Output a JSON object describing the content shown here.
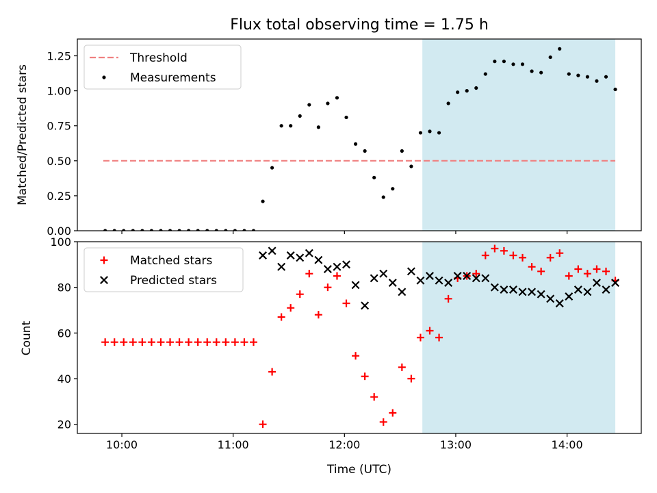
{
  "title": "Flux total observing time = 1.75 h",
  "colors": {
    "threshold": "#f08080",
    "measurement": "#000000",
    "matched": "#ff0000",
    "predicted": "#000000",
    "shade": "#add8e6"
  },
  "chart_data": [
    {
      "type": "scatter",
      "ylabel": "Matched/Predicted stars",
      "ylim": [
        0,
        1.37
      ],
      "xlim": [
        "09:36",
        "14:40"
      ],
      "yticks": [
        0.0,
        0.25,
        0.5,
        0.75,
        1.0,
        1.25
      ],
      "ytick_labels": [
        "0.00",
        "0.25",
        "0.50",
        "0.75",
        "1.00",
        "1.25"
      ],
      "legend": {
        "position": "top-left",
        "entries": [
          "Threshold",
          "Measurements"
        ]
      },
      "shaded_region": {
        "x_start": "12:42",
        "x_end": "14:26"
      },
      "threshold": {
        "name": "Threshold",
        "y": 0.5,
        "x_start": "09:50",
        "x_end": "14:26",
        "style": "dashed"
      },
      "series": [
        {
          "name": "Measurements",
          "x": [
            "09:51",
            "09:56",
            "10:01",
            "10:06",
            "10:11",
            "10:16",
            "10:21",
            "10:26",
            "10:31",
            "10:36",
            "10:41",
            "10:46",
            "10:51",
            "10:56",
            "11:01",
            "11:06",
            "11:11",
            "11:16",
            "11:21",
            "11:26",
            "11:31",
            "11:36",
            "11:41",
            "11:46",
            "11:51",
            "11:56",
            "12:01",
            "12:06",
            "12:11",
            "12:16",
            "12:21",
            "12:26",
            "12:31",
            "12:36",
            "12:41",
            "12:46",
            "12:51",
            "12:56",
            "13:01",
            "13:06",
            "13:11",
            "13:16",
            "13:21",
            "13:26",
            "13:31",
            "13:36",
            "13:41",
            "13:46",
            "13:51",
            "13:56",
            "14:01",
            "14:06",
            "14:11",
            "14:16",
            "14:21",
            "14:26"
          ],
          "y": [
            0,
            0,
            0,
            0,
            0,
            0,
            0,
            0,
            0,
            0,
            0,
            0,
            0,
            0,
            0,
            0,
            0,
            0.21,
            0.45,
            0.75,
            0.75,
            0.82,
            0.9,
            0.74,
            0.91,
            0.95,
            0.81,
            0.62,
            0.57,
            0.38,
            0.24,
            0.3,
            0.57,
            0.46,
            0.7,
            0.71,
            0.7,
            0.91,
            0.99,
            1.0,
            1.02,
            1.12,
            1.21,
            1.21,
            1.19,
            1.19,
            1.14,
            1.13,
            1.24,
            1.3,
            1.12,
            1.11,
            1.1,
            1.07,
            1.1,
            1.01
          ]
        }
      ]
    },
    {
      "type": "scatter",
      "ylabel": "Count",
      "xlabel": "Time (UTC)",
      "ylim": [
        16,
        100
      ],
      "xlim": [
        "09:36",
        "14:40"
      ],
      "yticks": [
        20,
        40,
        60,
        80,
        100
      ],
      "ytick_labels": [
        "20",
        "40",
        "60",
        "80",
        "100"
      ],
      "xticks": [
        "10:00",
        "11:00",
        "12:00",
        "13:00",
        "14:00"
      ],
      "legend": {
        "position": "top-left",
        "entries": [
          "Matched stars",
          "Predicted stars"
        ]
      },
      "shaded_region": {
        "x_start": "12:42",
        "x_end": "14:26"
      },
      "series": [
        {
          "name": "Matched stars",
          "marker": "plus",
          "x": [
            "09:51",
            "09:56",
            "10:01",
            "10:06",
            "10:11",
            "10:16",
            "10:21",
            "10:26",
            "10:31",
            "10:36",
            "10:41",
            "10:46",
            "10:51",
            "10:56",
            "11:01",
            "11:06",
            "11:11",
            "11:16",
            "11:21",
            "11:26",
            "11:31",
            "11:36",
            "11:41",
            "11:46",
            "11:51",
            "11:56",
            "12:01",
            "12:06",
            "12:11",
            "12:16",
            "12:21",
            "12:26",
            "12:31",
            "12:36",
            "12:41",
            "12:46",
            "12:51",
            "12:56",
            "13:01",
            "13:06",
            "13:11",
            "13:16",
            "13:21",
            "13:26",
            "13:31",
            "13:36",
            "13:41",
            "13:46",
            "13:51",
            "13:56",
            "14:01",
            "14:06",
            "14:11",
            "14:16",
            "14:21",
            "14:26"
          ],
          "y": [
            56,
            56,
            56,
            56,
            56,
            56,
            56,
            56,
            56,
            56,
            56,
            56,
            56,
            56,
            56,
            56,
            56,
            20,
            43,
            67,
            71,
            77,
            86,
            68,
            80,
            85,
            73,
            50,
            41,
            32,
            21,
            25,
            45,
            40,
            58,
            61,
            58,
            75,
            84,
            85,
            86,
            94,
            97,
            96,
            94,
            93,
            89,
            87,
            93,
            95,
            85,
            88,
            86,
            88,
            87,
            83
          ]
        },
        {
          "name": "Predicted stars",
          "marker": "x",
          "x": [
            "11:16",
            "11:21",
            "11:26",
            "11:31",
            "11:36",
            "11:41",
            "11:46",
            "11:51",
            "11:56",
            "12:01",
            "12:06",
            "12:11",
            "12:16",
            "12:21",
            "12:26",
            "12:31",
            "12:36",
            "12:41",
            "12:46",
            "12:51",
            "12:56",
            "13:01",
            "13:06",
            "13:11",
            "13:16",
            "13:21",
            "13:26",
            "13:31",
            "13:36",
            "13:41",
            "13:46",
            "13:51",
            "13:56",
            "14:01",
            "14:06",
            "14:11",
            "14:16",
            "14:21",
            "14:26"
          ],
          "y": [
            94,
            96,
            89,
            94,
            93,
            95,
            92,
            88,
            89,
            90,
            81,
            72,
            84,
            86,
            82,
            78,
            87,
            83,
            85,
            83,
            82,
            85,
            85,
            84,
            84,
            80,
            79,
            79,
            78,
            78,
            77,
            75,
            73,
            76,
            79,
            78,
            82,
            79,
            82
          ]
        }
      ]
    }
  ]
}
